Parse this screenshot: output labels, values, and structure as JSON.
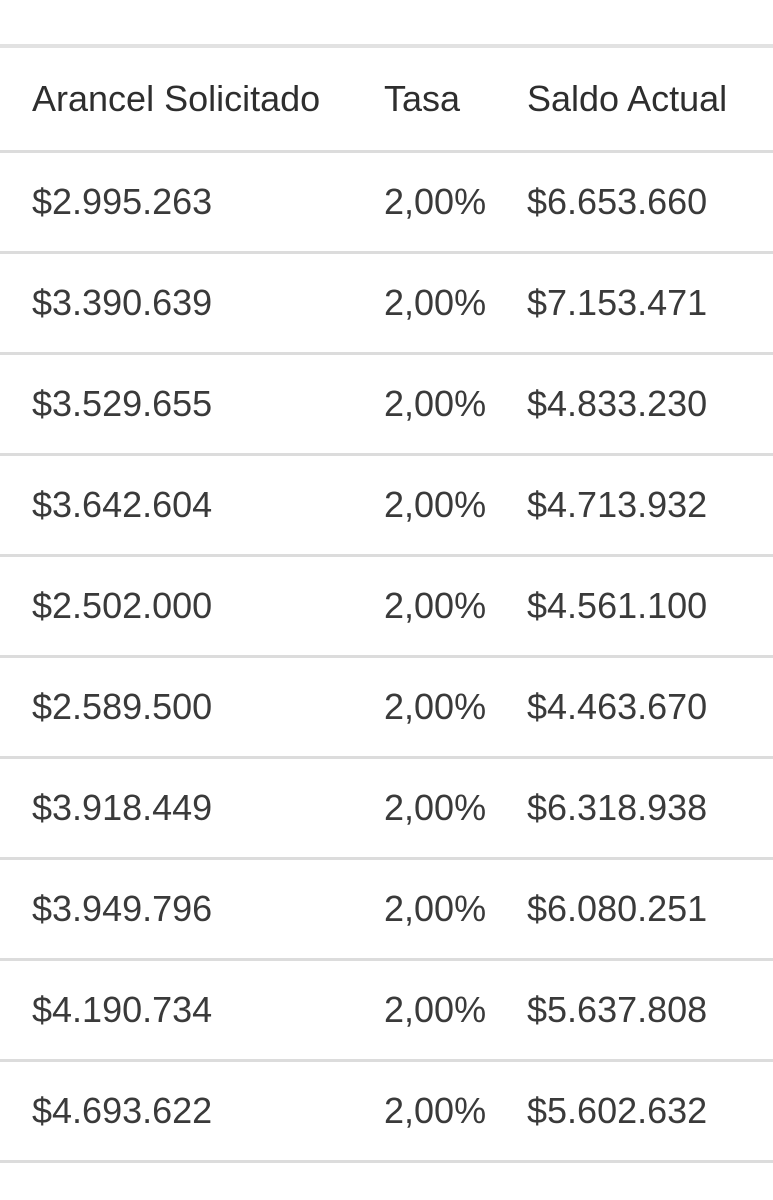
{
  "table": {
    "headers": [
      "Arancel Solicitado",
      "Tasa",
      "Saldo Actual"
    ],
    "rows": [
      [
        "$2.995.263",
        "2,00%",
        "$6.653.660"
      ],
      [
        "$3.390.639",
        "2,00%",
        "$7.153.471"
      ],
      [
        "$3.529.655",
        "2,00%",
        "$4.833.230"
      ],
      [
        "$3.642.604",
        "2,00%",
        "$4.713.932"
      ],
      [
        "$2.502.000",
        "2,00%",
        "$4.561.100"
      ],
      [
        "$2.589.500",
        "2,00%",
        "$4.463.670"
      ],
      [
        "$3.918.449",
        "2,00%",
        "$6.318.938"
      ],
      [
        "$3.949.796",
        "2,00%",
        "$6.080.251"
      ],
      [
        "$4.190.734",
        "2,00%",
        "$5.637.808"
      ],
      [
        "$4.693.622",
        "2,00%",
        "$5.602.632"
      ]
    ]
  }
}
